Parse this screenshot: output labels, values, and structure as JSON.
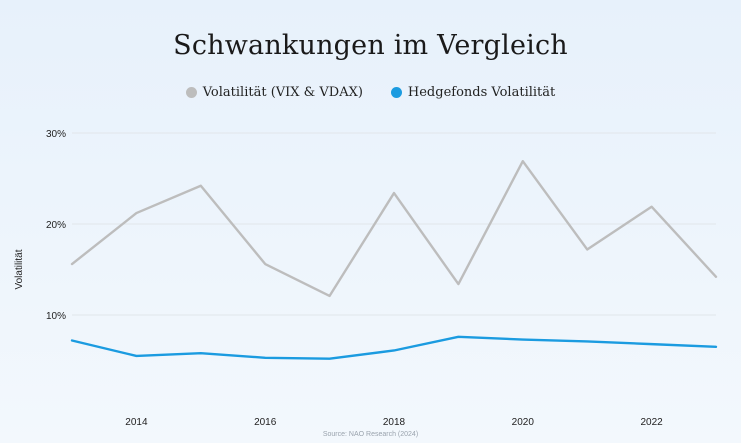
{
  "title": "Schwankungen im Vergleich",
  "source": "Source: NAO Research (2024)",
  "colors": {
    "series_gray": "#bdbdbd",
    "series_blue": "#1b9be0",
    "grid": "#e1e6ea",
    "axis_text": "#222222"
  },
  "chart_data": {
    "type": "line",
    "title": "Schwankungen im Vergleich",
    "xlabel": "",
    "ylabel": "Volatilität",
    "x": [
      2013,
      2014,
      2015,
      2016,
      2017,
      2018,
      2019,
      2020,
      2021,
      2022,
      2023
    ],
    "x_ticks": [
      "2014",
      "2016",
      "2018",
      "2020",
      "2022"
    ],
    "x_tick_values": [
      2014,
      2016,
      2018,
      2020,
      2022
    ],
    "xlim": [
      2013,
      2023
    ],
    "y_ticks": [
      "10%",
      "20%",
      "30%"
    ],
    "y_tick_values": [
      10,
      20,
      30
    ],
    "ylim": [
      0,
      30
    ],
    "grid": true,
    "legend_position": "top-center",
    "series": [
      {
        "name": "Volatilität (VIX & VDAX)",
        "color": "#bdbdbd",
        "values": [
          15.6,
          21.2,
          24.2,
          15.6,
          12.1,
          23.4,
          13.4,
          26.9,
          17.2,
          21.9,
          14.2
        ]
      },
      {
        "name": "Hedgefonds Volatilität",
        "color": "#1b9be0",
        "values": [
          7.2,
          5.5,
          5.8,
          5.3,
          5.2,
          6.1,
          7.6,
          7.3,
          7.1,
          6.8,
          6.5
        ]
      }
    ]
  }
}
